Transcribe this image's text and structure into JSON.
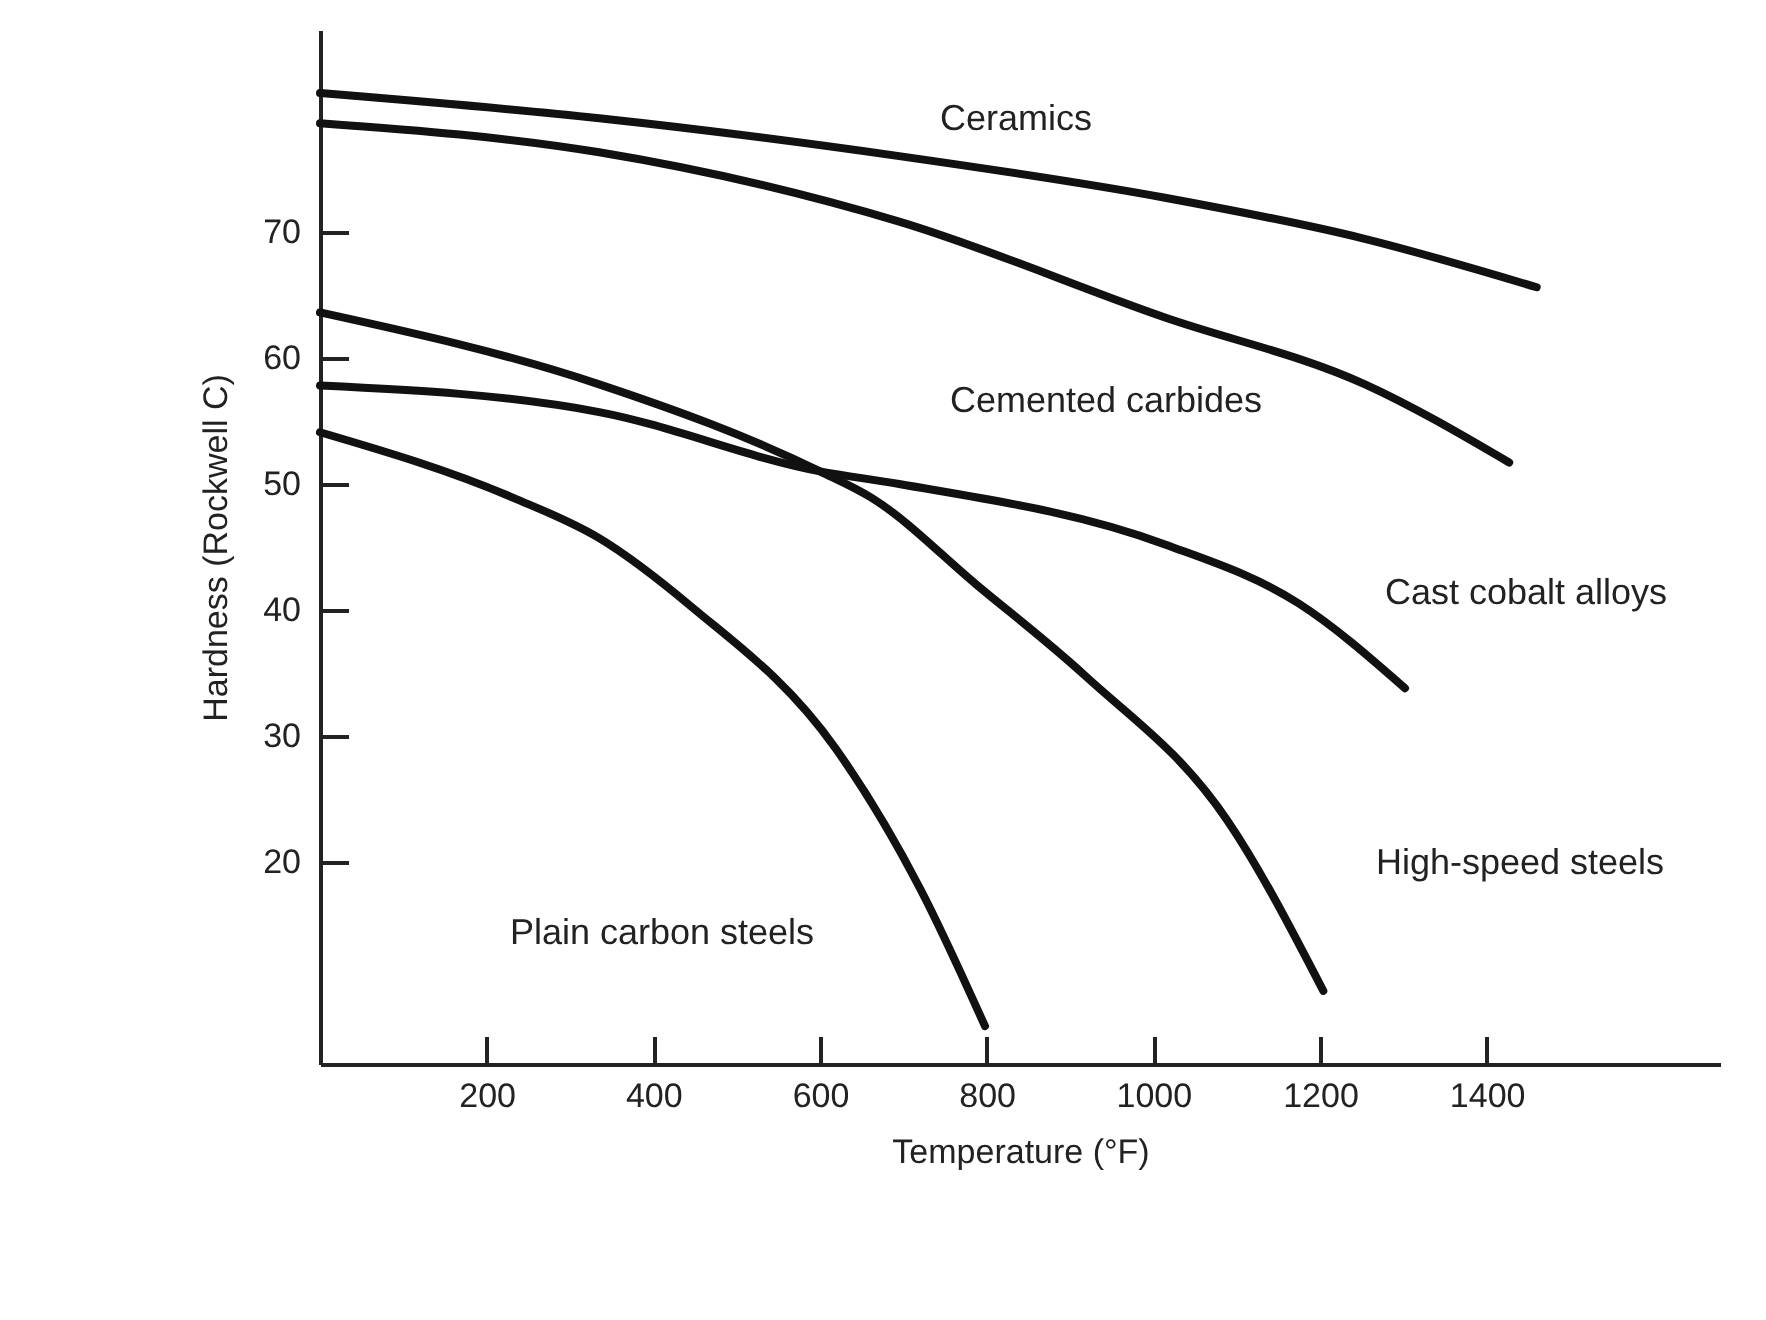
{
  "chart_data": {
    "type": "line",
    "xlabel": "Temperature (°F)",
    "ylabel": "Hardness (Rockwell C)",
    "xlim": [
      0,
      1680
    ],
    "ylim": [
      4,
      86
    ],
    "xticks": [
      200,
      400,
      600,
      800,
      1000,
      1200,
      1400
    ],
    "yticks": [
      20,
      30,
      40,
      50,
      60,
      70
    ],
    "grid": false,
    "marker": "none",
    "line_style": "solid",
    "series": [
      {
        "name": "Ceramics",
        "color": "#111111",
        "x": [
          0,
          335,
          695,
          1014,
          1250,
          1460
        ],
        "values": [
          81,
          79,
          76,
          72.7,
          69.5,
          65.6
        ]
      },
      {
        "name": "Cemented carbides",
        "color": "#111111",
        "x": [
          0,
          335,
          695,
          1014,
          1254,
          1427
        ],
        "values": [
          78.6,
          76.3,
          70.8,
          63.2,
          57.9,
          51.7
        ]
      },
      {
        "name": "Cast cobalt alloys",
        "color": "#111111",
        "x": [
          0,
          335,
          600,
          695,
          1014,
          1175,
          1302
        ],
        "values": [
          57.8,
          55.7,
          51,
          50,
          45.2,
          40.5,
          33.8
        ]
      },
      {
        "name": "High-speed steels",
        "color": "#111111",
        "x": [
          0,
          335,
          600,
          662,
          788,
          918,
          1089,
          1204
        ],
        "values": [
          63.6,
          57.9,
          51,
          48.9,
          42,
          34.8,
          23.3,
          9.8
        ]
      },
      {
        "name": "Plain carbon steels",
        "color": "#111111",
        "x": [
          0,
          232,
          335,
          445,
          619,
          721,
          798
        ],
        "values": [
          54.1,
          48.9,
          45.7,
          40.3,
          29,
          17.8,
          7
        ]
      }
    ]
  }
}
